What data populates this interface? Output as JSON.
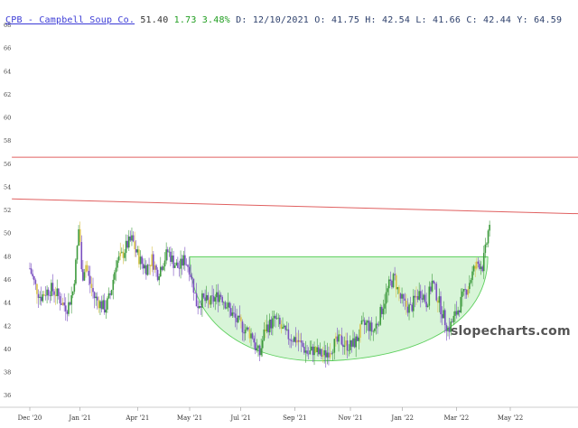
{
  "header": {
    "symbol": "CPB - Campbell Soup Co.",
    "price": "51.40",
    "change": "1.73",
    "change_pct": "3.48%",
    "date_label": "D:",
    "date": "12/10/2021",
    "open_label": "O:",
    "open": "41.75",
    "high_label": "H:",
    "high": "42.54",
    "low_label": "L:",
    "low": "41.66",
    "close_label": "C:",
    "close": "42.44",
    "y_label": "Y:",
    "y": "64.59"
  },
  "watermark": "slopecharts.com",
  "colors": {
    "trendline": "#e06060",
    "pattern_fill": "#d8f5d8",
    "pattern_stroke": "#5ccf5c",
    "candle_up": "#3d9a3d",
    "candle_down": "#7a4fc0",
    "candle_hi": "#d7c24a"
  },
  "chart_data": {
    "type": "candlestick",
    "title": "",
    "xlabel": "",
    "ylabel": "",
    "ylim": [
      35,
      68
    ],
    "y_ticks": [
      36,
      38,
      40,
      42,
      44,
      46,
      48,
      50,
      52,
      54,
      56,
      58,
      60,
      62,
      64,
      66,
      68
    ],
    "x_ticks": [
      "Dec '20",
      "Jan '21",
      "Apr '21",
      "May '21",
      "Jul '21",
      "Sep '21",
      "Nov '21",
      "Jan '22",
      "Mar '22",
      "May '22"
    ],
    "x_range": [
      0,
      520
    ],
    "x_tick_positions": [
      0,
      56,
      120,
      178,
      235,
      295,
      357,
      415,
      475,
      535
    ],
    "grid": false,
    "price_path": [
      [
        0,
        47.0
      ],
      [
        6,
        45.5
      ],
      [
        12,
        44.5
      ],
      [
        18,
        45.0
      ],
      [
        24,
        45.2
      ],
      [
        30,
        44.8
      ],
      [
        36,
        44.0
      ],
      [
        42,
        43.6
      ],
      [
        48,
        45.0
      ],
      [
        52,
        48.0
      ],
      [
        55,
        51.0
      ],
      [
        58,
        46.0
      ],
      [
        62,
        47.5
      ],
      [
        66,
        46.0
      ],
      [
        72,
        44.5
      ],
      [
        78,
        44.0
      ],
      [
        84,
        43.5
      ],
      [
        90,
        44.8
      ],
      [
        96,
        47.5
      ],
      [
        102,
        48.0
      ],
      [
        108,
        49.0
      ],
      [
        114,
        49.5
      ],
      [
        118,
        48.5
      ],
      [
        124,
        47.5
      ],
      [
        130,
        47.0
      ],
      [
        136,
        47.8
      ],
      [
        142,
        46.5
      ],
      [
        148,
        47.5
      ],
      [
        154,
        48.5
      ],
      [
        160,
        47.5
      ],
      [
        166,
        47.0
      ],
      [
        172,
        47.8
      ],
      [
        178,
        47.0
      ],
      [
        182,
        45.5
      ],
      [
        186,
        43.8
      ],
      [
        192,
        44.3
      ],
      [
        200,
        44.0
      ],
      [
        206,
        44.4
      ],
      [
        212,
        44.8
      ],
      [
        218,
        44.0
      ],
      [
        224,
        43.2
      ],
      [
        230,
        42.5
      ],
      [
        236,
        42.0
      ],
      [
        242,
        41.6
      ],
      [
        248,
        41.2
      ],
      [
        252,
        40.0
      ],
      [
        256,
        39.6
      ],
      [
        262,
        41.8
      ],
      [
        268,
        42.2
      ],
      [
        274,
        42.6
      ],
      [
        280,
        41.8
      ],
      [
        286,
        41.2
      ],
      [
        292,
        41.0
      ],
      [
        298,
        40.8
      ],
      [
        304,
        40.2
      ],
      [
        310,
        39.6
      ],
      [
        316,
        40.0
      ],
      [
        322,
        39.6
      ],
      [
        328,
        39.5
      ],
      [
        334,
        40.0
      ],
      [
        340,
        40.5
      ],
      [
        346,
        40.8
      ],
      [
        352,
        40.4
      ],
      [
        358,
        40.3
      ],
      [
        364,
        40.8
      ],
      [
        370,
        42.0
      ],
      [
        376,
        42.2
      ],
      [
        382,
        41.5
      ],
      [
        388,
        42.5
      ],
      [
        394,
        44.0
      ],
      [
        400,
        45.5
      ],
      [
        406,
        46.2
      ],
      [
        412,
        44.5
      ],
      [
        418,
        43.8
      ],
      [
        424,
        43.5
      ],
      [
        430,
        44.5
      ],
      [
        436,
        45.0
      ],
      [
        442,
        44.0
      ],
      [
        448,
        45.8
      ],
      [
        454,
        44.5
      ],
      [
        460,
        43.0
      ],
      [
        466,
        41.7
      ],
      [
        470,
        42.3
      ],
      [
        476,
        43.3
      ],
      [
        482,
        44.5
      ],
      [
        488,
        45.5
      ],
      [
        494,
        46.8
      ],
      [
        500,
        47.5
      ],
      [
        504,
        47.2
      ],
      [
        508,
        48.8
      ],
      [
        511,
        50.5
      ],
      [
        513,
        51.4
      ]
    ],
    "pattern": {
      "type": "cup",
      "rim_level": 48.0,
      "bottom_level": 39.0,
      "x_start": 178,
      "x_end": 510,
      "x_bottom": 322
    },
    "trendlines": [
      {
        "x1": -20,
        "y1": 56.6,
        "x2": 620,
        "y2": 56.6
      },
      {
        "x1": -20,
        "y1": 53.0,
        "x2": 620,
        "y2": 51.7
      }
    ]
  }
}
